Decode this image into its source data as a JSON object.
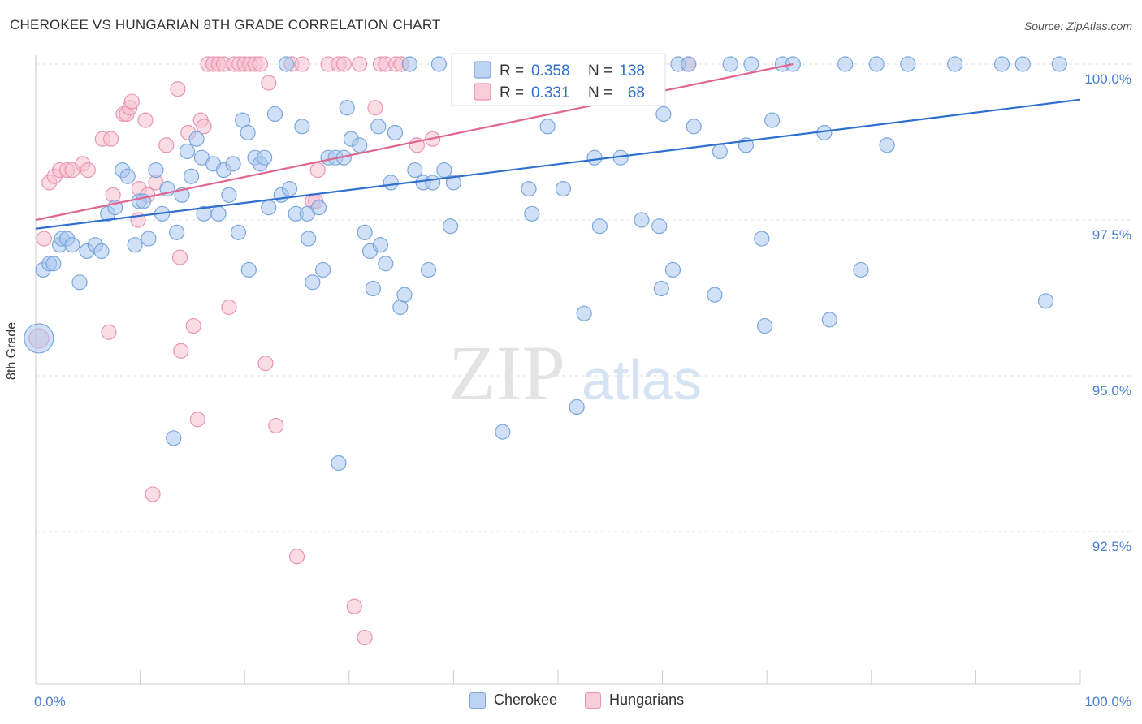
{
  "title": "CHEROKEE VS HUNGARIAN 8TH GRADE CORRELATION CHART",
  "source": "Source: ZipAtlas.com",
  "watermark": {
    "zip": "ZIP",
    "atlas": "atlas"
  },
  "colors": {
    "blue_fill": "#a9c6ee",
    "blue_stroke": "#7aa6dc",
    "blue_line": "#2f6fcf",
    "pink_fill": "#f6bfd0",
    "pink_stroke": "#e995b0",
    "pink_line": "#e0668f",
    "tick_text": "#4a7fd0",
    "grid": "#dddddd"
  },
  "legend": {
    "rows": [
      {
        "r_label": "R =",
        "r_value": "0.358",
        "n_label": "N =",
        "n_value": "138",
        "series": "Cherokee"
      },
      {
        "r_label": "R =",
        "r_value": "0.331",
        "n_label": "N =",
        "n_value": "68",
        "series": "Hungarians"
      }
    ]
  },
  "bottom_legend": [
    "Cherokee",
    "Hungarians"
  ],
  "chart_data": {
    "type": "scatter",
    "title": "CHEROKEE VS HUNGARIAN 8TH GRADE CORRELATION CHART",
    "xlabel": "",
    "ylabel": "8th Grade",
    "xlim": [
      0,
      100
    ],
    "ylim": [
      90.1,
      100.4
    ],
    "x_tick_labels": [
      "0.0%",
      "100.0%"
    ],
    "y_ticks": [
      92.5,
      95.0,
      97.5,
      100.0
    ],
    "y_tick_labels": [
      "92.5%",
      "95.0%",
      "97.5%",
      "100.0%"
    ],
    "grid": true,
    "legend_position": "top-center",
    "series": [
      {
        "name": "Cherokee",
        "r": 0.358,
        "n": 138,
        "trend": {
          "x": [
            0,
            100
          ],
          "y": [
            97.36,
            99.43
          ]
        },
        "points": [
          [
            0.3,
            95.6
          ],
          [
            0.7,
            96.7
          ],
          [
            1.3,
            96.8
          ],
          [
            1.7,
            96.8
          ],
          [
            2.3,
            97.1
          ],
          [
            2.5,
            97.2
          ],
          [
            3.0,
            97.2
          ],
          [
            3.5,
            97.1
          ],
          [
            4.2,
            96.5
          ],
          [
            4.9,
            97.0
          ],
          [
            5.7,
            97.1
          ],
          [
            6.3,
            97.0
          ],
          [
            6.9,
            97.6
          ],
          [
            7.6,
            97.7
          ],
          [
            8.3,
            98.3
          ],
          [
            8.8,
            98.2
          ],
          [
            9.5,
            97.1
          ],
          [
            9.9,
            97.8
          ],
          [
            10.3,
            97.8
          ],
          [
            10.8,
            97.2
          ],
          [
            11.5,
            98.3
          ],
          [
            12.1,
            97.6
          ],
          [
            12.6,
            98.0
          ],
          [
            13.2,
            94.0
          ],
          [
            13.5,
            97.3
          ],
          [
            14.0,
            97.9
          ],
          [
            14.5,
            98.6
          ],
          [
            14.9,
            98.2
          ],
          [
            15.4,
            98.8
          ],
          [
            15.9,
            98.5
          ],
          [
            16.1,
            97.6
          ],
          [
            17.0,
            98.4
          ],
          [
            17.5,
            97.6
          ],
          [
            18.0,
            98.3
          ],
          [
            18.5,
            97.9
          ],
          [
            18.9,
            98.4
          ],
          [
            19.4,
            97.3
          ],
          [
            19.8,
            99.1
          ],
          [
            20.3,
            98.9
          ],
          [
            20.4,
            96.7
          ],
          [
            21.0,
            98.5
          ],
          [
            21.5,
            98.4
          ],
          [
            21.9,
            98.5
          ],
          [
            22.3,
            97.7
          ],
          [
            22.9,
            99.2
          ],
          [
            23.5,
            97.9
          ],
          [
            24.0,
            100.0
          ],
          [
            24.3,
            98.0
          ],
          [
            24.9,
            97.6
          ],
          [
            25.5,
            99.0
          ],
          [
            26.0,
            97.6
          ],
          [
            26.1,
            97.2
          ],
          [
            26.5,
            96.5
          ],
          [
            27.1,
            97.7
          ],
          [
            27.5,
            96.7
          ],
          [
            28.0,
            98.5
          ],
          [
            28.7,
            98.5
          ],
          [
            29.0,
            93.6
          ],
          [
            29.5,
            98.5
          ],
          [
            29.8,
            99.3
          ],
          [
            30.2,
            98.8
          ],
          [
            31.0,
            98.7
          ],
          [
            31.5,
            97.3
          ],
          [
            32.0,
            97.0
          ],
          [
            32.3,
            96.4
          ],
          [
            32.8,
            99.0
          ],
          [
            33.0,
            97.1
          ],
          [
            33.5,
            96.8
          ],
          [
            34.0,
            98.1
          ],
          [
            34.4,
            98.9
          ],
          [
            34.9,
            96.1
          ],
          [
            35.3,
            96.3
          ],
          [
            35.8,
            100.0
          ],
          [
            36.3,
            98.3
          ],
          [
            37.1,
            98.1
          ],
          [
            37.6,
            96.7
          ],
          [
            38.0,
            98.1
          ],
          [
            38.6,
            100.0
          ],
          [
            39.1,
            98.3
          ],
          [
            39.7,
            97.4
          ],
          [
            40.0,
            98.1
          ],
          [
            41.5,
            100.0
          ],
          [
            44.5,
            100.0
          ],
          [
            44.7,
            94.1
          ],
          [
            47.2,
            98.0
          ],
          [
            47.5,
            97.6
          ],
          [
            49.0,
            99.0
          ],
          [
            50.5,
            98.0
          ],
          [
            51.8,
            94.5
          ],
          [
            52.5,
            96.0
          ],
          [
            53.5,
            98.5
          ],
          [
            54.0,
            97.4
          ],
          [
            56.0,
            98.5
          ],
          [
            58.0,
            97.5
          ],
          [
            59.7,
            97.4
          ],
          [
            59.9,
            96.4
          ],
          [
            60.1,
            99.2
          ],
          [
            61.0,
            96.7
          ],
          [
            61.5,
            100.0
          ],
          [
            62.5,
            100.0
          ],
          [
            63.0,
            99.0
          ],
          [
            65.0,
            96.3
          ],
          [
            65.5,
            98.6
          ],
          [
            66.5,
            100.0
          ],
          [
            68.0,
            98.7
          ],
          [
            68.5,
            100.0
          ],
          [
            69.5,
            97.2
          ],
          [
            69.8,
            95.8
          ],
          [
            70.5,
            99.1
          ],
          [
            71.5,
            100.0
          ],
          [
            72.5,
            100.0
          ],
          [
            75.5,
            98.9
          ],
          [
            76.0,
            95.9
          ],
          [
            77.5,
            100.0
          ],
          [
            79.0,
            96.7
          ],
          [
            80.5,
            100.0
          ],
          [
            81.5,
            98.7
          ],
          [
            83.5,
            100.0
          ],
          [
            88.0,
            100.0
          ],
          [
            92.5,
            100.0
          ],
          [
            94.5,
            100.0
          ],
          [
            96.7,
            96.2
          ],
          [
            98.0,
            100.0
          ]
        ]
      },
      {
        "name": "Hungarians",
        "r": 0.331,
        "n": 68,
        "trend": {
          "x": [
            0,
            72.5
          ],
          "y": [
            97.5,
            100.0
          ]
        },
        "points": [
          [
            0.3,
            95.6
          ],
          [
            0.8,
            97.2
          ],
          [
            1.3,
            98.1
          ],
          [
            1.8,
            98.2
          ],
          [
            2.3,
            98.3
          ],
          [
            3.0,
            98.3
          ],
          [
            3.5,
            98.3
          ],
          [
            4.5,
            98.4
          ],
          [
            5.0,
            98.3
          ],
          [
            6.4,
            98.8
          ],
          [
            7.0,
            95.7
          ],
          [
            7.2,
            98.8
          ],
          [
            7.4,
            97.9
          ],
          [
            8.4,
            99.2
          ],
          [
            8.7,
            99.2
          ],
          [
            9.0,
            99.3
          ],
          [
            9.2,
            99.4
          ],
          [
            9.8,
            97.5
          ],
          [
            9.9,
            98.0
          ],
          [
            10.5,
            99.1
          ],
          [
            10.7,
            97.9
          ],
          [
            11.2,
            93.1
          ],
          [
            11.5,
            98.1
          ],
          [
            12.5,
            98.7
          ],
          [
            13.6,
            99.6
          ],
          [
            13.8,
            96.9
          ],
          [
            13.9,
            95.4
          ],
          [
            14.6,
            98.9
          ],
          [
            15.1,
            95.8
          ],
          [
            15.5,
            94.3
          ],
          [
            15.8,
            99.1
          ],
          [
            16.1,
            99.0
          ],
          [
            16.5,
            100.0
          ],
          [
            17.0,
            100.0
          ],
          [
            17.5,
            100.0
          ],
          [
            18.0,
            100.0
          ],
          [
            18.5,
            96.1
          ],
          [
            19.0,
            100.0
          ],
          [
            19.5,
            100.0
          ],
          [
            20.0,
            100.0
          ],
          [
            20.5,
            100.0
          ],
          [
            21.0,
            100.0
          ],
          [
            21.5,
            100.0
          ],
          [
            22.0,
            95.2
          ],
          [
            22.3,
            99.7
          ],
          [
            23.0,
            94.2
          ],
          [
            24.5,
            100.0
          ],
          [
            25.0,
            92.1
          ],
          [
            25.5,
            100.0
          ],
          [
            26.5,
            97.8
          ],
          [
            26.8,
            97.8
          ],
          [
            27.0,
            98.3
          ],
          [
            28.0,
            100.0
          ],
          [
            29.0,
            100.0
          ],
          [
            29.5,
            100.0
          ],
          [
            30.5,
            91.3
          ],
          [
            31.0,
            100.0
          ],
          [
            31.5,
            90.8
          ],
          [
            32.5,
            99.3
          ],
          [
            33.0,
            100.0
          ],
          [
            33.5,
            100.0
          ],
          [
            34.5,
            100.0
          ],
          [
            35.0,
            100.0
          ],
          [
            36.5,
            98.7
          ],
          [
            38.0,
            98.8
          ],
          [
            40.5,
            100.0
          ],
          [
            50.0,
            100.0
          ],
          [
            62.5,
            100.0
          ]
        ]
      }
    ]
  }
}
